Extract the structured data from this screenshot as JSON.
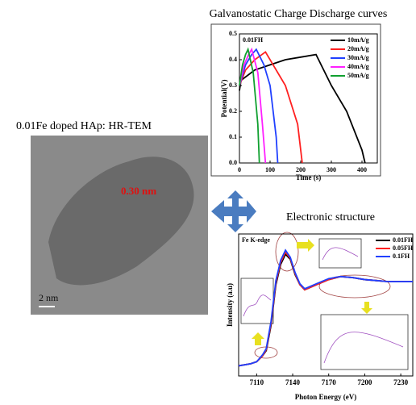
{
  "chart_data": [
    {
      "type": "line",
      "title": "Galvanostatic Charge Discharge curves",
      "x_label": "Time (s)",
      "y_label": "Potential(V)",
      "annotation": "0.01FH",
      "xlim": [
        0,
        450
      ],
      "xticks": [
        0,
        100,
        200,
        300,
        400
      ],
      "ylim": [
        0,
        0.5
      ],
      "yticks": [
        {
          "value": 0,
          "label": "0.0"
        },
        0.1,
        0.2,
        0.3,
        0.4,
        {
          "value": 0.5,
          "label": "0.5"
        }
      ],
      "legend": "upper right",
      "series": [
        {
          "name": "10mA/g",
          "color": "#000000",
          "x": [
            0,
            5,
            50,
            100,
            150,
            200,
            250,
            300,
            350,
            400,
            410
          ],
          "values": [
            0.28,
            0.32,
            0.36,
            0.38,
            0.4,
            0.41,
            0.42,
            0.3,
            0.2,
            0.05,
            0
          ]
        },
        {
          "name": "20mA/g",
          "color": "#ff2020",
          "x": [
            0,
            20,
            50,
            85,
            110,
            150,
            190,
            205
          ],
          "values": [
            0.3,
            0.36,
            0.4,
            0.43,
            0.38,
            0.3,
            0.15,
            0
          ]
        },
        {
          "name": "30mA/g",
          "color": "#2040ff",
          "x": [
            0,
            20,
            40,
            55,
            80,
            100,
            120,
            125
          ],
          "values": [
            0.3,
            0.38,
            0.42,
            0.44,
            0.38,
            0.3,
            0.1,
            0
          ]
        },
        {
          "name": "40mA/g",
          "color": "#ff20ff",
          "x": [
            0,
            15,
            30,
            40,
            60,
            75,
            85
          ],
          "values": [
            0.3,
            0.38,
            0.42,
            0.44,
            0.35,
            0.15,
            0
          ]
        },
        {
          "name": "50mA/g",
          "color": "#10a030",
          "x": [
            0,
            10,
            20,
            28,
            45,
            60,
            65
          ],
          "values": [
            0.3,
            0.38,
            0.42,
            0.44,
            0.35,
            0.15,
            0
          ]
        }
      ]
    },
    {
      "type": "line",
      "title": "Electronic structure",
      "x_label": "Photon Energy (eV)",
      "y_label": "Intensity (a.u)",
      "annotation": "Fe K-edge",
      "xlim": [
        7095,
        7240
      ],
      "xticks": [
        7110,
        7140,
        7170,
        7200,
        7230
      ],
      "ylim": [
        0,
        1.4
      ],
      "legend": "upper right",
      "x": [
        7095,
        7105,
        7110,
        7115,
        7118,
        7122,
        7126,
        7130,
        7134,
        7138,
        7142,
        7146,
        7150,
        7160,
        7170,
        7180,
        7190,
        7200,
        7210,
        7220,
        7230,
        7240
      ],
      "series": [
        {
          "name": "0.01FH",
          "color": "#000000",
          "values": [
            0.1,
            0.12,
            0.14,
            0.2,
            0.25,
            0.5,
            0.9,
            1.1,
            1.2,
            1.15,
            1.0,
            0.9,
            0.85,
            0.9,
            0.95,
            0.98,
            0.97,
            0.95,
            0.94,
            0.93,
            0.93,
            0.93
          ]
        },
        {
          "name": "0.05FH",
          "color": "#ff2020",
          "values": [
            0.1,
            0.12,
            0.14,
            0.2,
            0.26,
            0.52,
            0.92,
            1.12,
            1.22,
            1.16,
            1.01,
            0.9,
            0.85,
            0.9,
            0.95,
            0.98,
            0.97,
            0.95,
            0.94,
            0.93,
            0.93,
            0.93
          ]
        },
        {
          "name": "0.1FH",
          "color": "#2040ff",
          "values": [
            0.1,
            0.12,
            0.14,
            0.21,
            0.27,
            0.54,
            0.94,
            1.14,
            1.24,
            1.17,
            1.02,
            0.91,
            0.86,
            0.91,
            0.96,
            0.98,
            0.97,
            0.95,
            0.94,
            0.93,
            0.93,
            0.93
          ]
        }
      ]
    }
  ],
  "image": {
    "title": "0.01Fe doped HAp: HR-TEM",
    "annotation": "0.30 nm",
    "scale_bar": "2 nm"
  }
}
